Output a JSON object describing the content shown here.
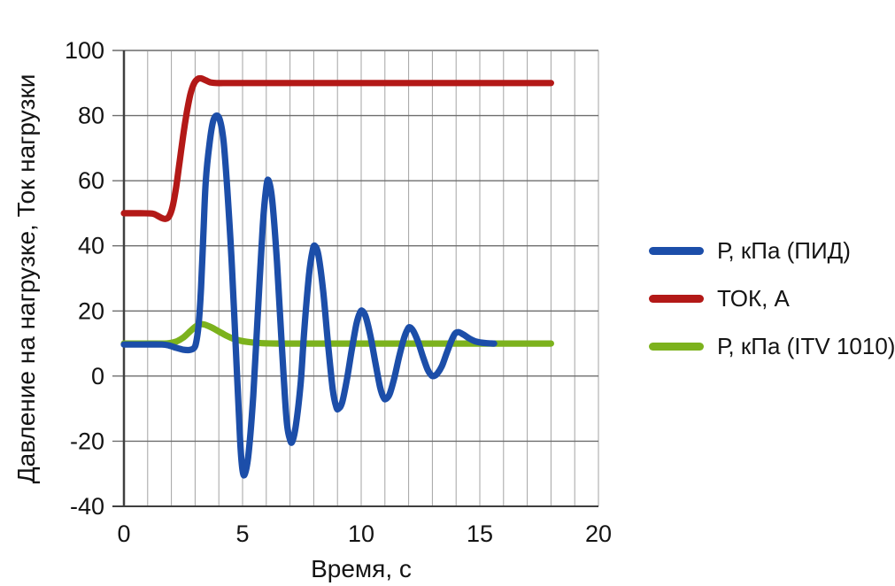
{
  "chart_data": {
    "type": "line",
    "title": "",
    "xlabel": "Время, с",
    "ylabel": "Давление на нагрузке, Ток нагрузки",
    "legend_position": "right-outside",
    "grid": true,
    "axes": {
      "x": {
        "label": "Время, с",
        "min": 0,
        "max": 20,
        "ticks": [
          0,
          5,
          10,
          15,
          20
        ],
        "minor_grid_step": 1
      },
      "y": {
        "label": "Давление на нагрузке, Ток нагрузки",
        "min": -40,
        "max": 100,
        "ticks": [
          100,
          80,
          60,
          40,
          20,
          0,
          -20,
          -40
        ],
        "grid_step": 20
      }
    },
    "palette": {
      "text": "#141414",
      "axis": "#3f3f3f",
      "frame": "#8f8f8f",
      "grid_major": "#6e6e6e",
      "grid_minor": "#a3a3a3",
      "background": "#ffffff"
    },
    "series": [
      {
        "id": "pid",
        "name": "Р, кПа (ПИД)",
        "color": "#1c4ea9",
        "description": "Damped oscillation around 10 kPa, period ~2 s, peaks 80/60/40/20/15/13.5 at t=4,6,8,10,12,14; minima -30/-20/-10/-7/0 at t=5,7,9,11,13; settles at 10 by t=15.6",
        "points": [
          [
            0,
            9.7
          ],
          [
            0.8,
            9.7
          ],
          [
            1.6,
            9.7
          ],
          [
            1.9,
            9.4
          ],
          [
            2.2,
            8.7
          ],
          [
            2.5,
            8.1
          ],
          [
            2.75,
            8.0
          ],
          [
            2.95,
            8.6
          ],
          [
            3.05,
            10.5
          ],
          [
            3.15,
            16
          ],
          [
            3.25,
            27
          ],
          [
            3.35,
            44
          ],
          [
            3.45,
            60
          ],
          [
            3.6,
            71
          ],
          [
            3.75,
            78
          ],
          [
            3.9,
            80
          ],
          [
            4.05,
            78.5
          ],
          [
            4.2,
            72
          ],
          [
            4.35,
            58
          ],
          [
            4.55,
            34
          ],
          [
            4.75,
            3
          ],
          [
            4.9,
            -20
          ],
          [
            5.0,
            -29
          ],
          [
            5.1,
            -30
          ],
          [
            5.25,
            -24
          ],
          [
            5.45,
            -6
          ],
          [
            5.65,
            20
          ],
          [
            5.85,
            46
          ],
          [
            6.0,
            58
          ],
          [
            6.1,
            60
          ],
          [
            6.25,
            54
          ],
          [
            6.45,
            35
          ],
          [
            6.65,
            10
          ],
          [
            6.85,
            -13
          ],
          [
            7.0,
            -19.5
          ],
          [
            7.1,
            -20
          ],
          [
            7.25,
            -15
          ],
          [
            7.45,
            -2
          ],
          [
            7.6,
            14
          ],
          [
            7.8,
            31
          ],
          [
            7.95,
            38.5
          ],
          [
            8.05,
            40
          ],
          [
            8.2,
            37
          ],
          [
            8.4,
            26
          ],
          [
            8.6,
            10
          ],
          [
            8.8,
            -4
          ],
          [
            8.95,
            -9.5
          ],
          [
            9.05,
            -10
          ],
          [
            9.2,
            -8
          ],
          [
            9.4,
            -1
          ],
          [
            9.6,
            8
          ],
          [
            9.8,
            16
          ],
          [
            9.95,
            19.5
          ],
          [
            10.05,
            20
          ],
          [
            10.2,
            18
          ],
          [
            10.4,
            12
          ],
          [
            10.6,
            4
          ],
          [
            10.8,
            -3.5
          ],
          [
            10.95,
            -6.7
          ],
          [
            11.05,
            -7
          ],
          [
            11.2,
            -5.5
          ],
          [
            11.4,
            -0.5
          ],
          [
            11.6,
            6
          ],
          [
            11.8,
            11.5
          ],
          [
            11.95,
            14.3
          ],
          [
            12.05,
            15
          ],
          [
            12.2,
            13.8
          ],
          [
            12.4,
            10.5
          ],
          [
            12.6,
            6
          ],
          [
            12.8,
            2
          ],
          [
            12.95,
            0.3
          ],
          [
            13.05,
            0
          ],
          [
            13.2,
            0.7
          ],
          [
            13.4,
            3
          ],
          [
            13.6,
            7
          ],
          [
            13.8,
            10.8
          ],
          [
            13.95,
            13
          ],
          [
            14.1,
            13.5
          ],
          [
            14.3,
            12.8
          ],
          [
            14.55,
            11.6
          ],
          [
            14.8,
            10.7
          ],
          [
            15.05,
            10.3
          ],
          [
            15.3,
            10.1
          ],
          [
            15.6,
            10
          ]
        ]
      },
      {
        "id": "current",
        "name": "ТОК, А",
        "color": "#b31917",
        "description": "Flat at 50 A, small dip to ~48.3 near t=1.7, steep rise t=1.9..3.1 with slight overshoot to ~91.5, then constant 90 A until t=18",
        "points": [
          [
            0,
            50
          ],
          [
            0.7,
            50
          ],
          [
            1.2,
            49.9
          ],
          [
            1.4,
            49.3
          ],
          [
            1.6,
            48.5
          ],
          [
            1.75,
            48.3
          ],
          [
            1.9,
            49
          ],
          [
            2.05,
            52
          ],
          [
            2.2,
            58
          ],
          [
            2.35,
            66
          ],
          [
            2.5,
            74
          ],
          [
            2.65,
            81
          ],
          [
            2.8,
            86.5
          ],
          [
            2.95,
            89.8
          ],
          [
            3.1,
            91.2
          ],
          [
            3.25,
            91.4
          ],
          [
            3.45,
            90.8
          ],
          [
            3.65,
            90.2
          ],
          [
            3.9,
            90
          ],
          [
            4.5,
            90
          ],
          [
            6,
            90
          ],
          [
            8,
            90
          ],
          [
            10,
            90
          ],
          [
            12,
            90
          ],
          [
            14,
            90
          ],
          [
            16,
            90
          ],
          [
            18,
            90
          ]
        ]
      },
      {
        "id": "itv1010",
        "name": "Р, кПа (ITV 1010)",
        "color": "#7cb21d",
        "description": "Flat at 10 kPa, small bump peaking ~16 near t=3.2, decays back to 10 by t~6, flat until t=18",
        "points": [
          [
            0,
            10
          ],
          [
            0.8,
            10
          ],
          [
            1.6,
            10
          ],
          [
            1.9,
            10.1
          ],
          [
            2.2,
            10.6
          ],
          [
            2.5,
            11.8
          ],
          [
            2.8,
            13.8
          ],
          [
            3.0,
            15.1
          ],
          [
            3.2,
            15.9
          ],
          [
            3.4,
            15.8
          ],
          [
            3.7,
            14.9
          ],
          [
            4.0,
            13.7
          ],
          [
            4.3,
            12.5
          ],
          [
            4.6,
            11.5
          ],
          [
            4.9,
            10.9
          ],
          [
            5.2,
            10.5
          ],
          [
            5.6,
            10.2
          ],
          [
            6.0,
            10.05
          ],
          [
            6.5,
            10
          ],
          [
            7.5,
            10
          ],
          [
            9,
            10
          ],
          [
            11,
            10
          ],
          [
            13,
            10
          ],
          [
            15,
            10
          ],
          [
            16.5,
            10
          ],
          [
            18,
            10
          ]
        ]
      }
    ]
  }
}
